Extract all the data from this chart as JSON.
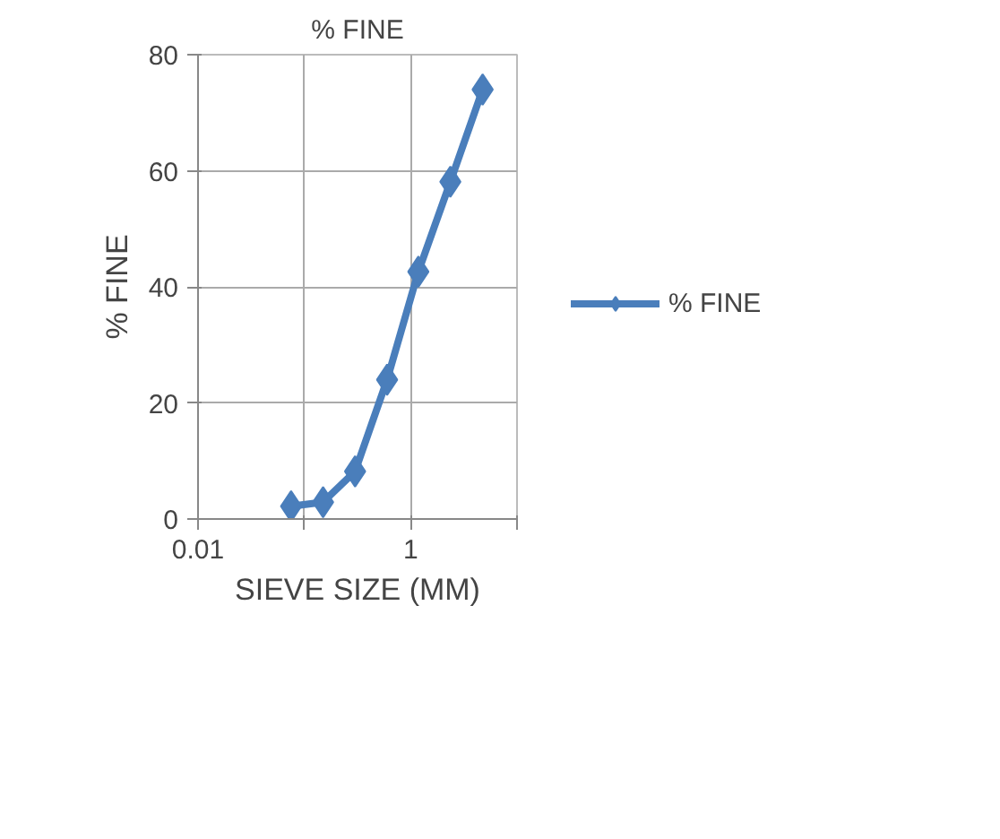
{
  "chart_data": {
    "type": "line",
    "title": "% FINE",
    "xlabel": "SIEVE SIZE (MM)",
    "ylabel": "% FINE",
    "x": [
      0.075,
      0.15,
      0.3,
      0.6,
      1.18,
      2.36,
      4.75
    ],
    "series": [
      {
        "name": "% FINE",
        "color": "#4a7ebb",
        "values": [
          2.2,
          2.9,
          8.2,
          24.0,
          42.6,
          58.1,
          74.0
        ]
      }
    ],
    "log": "x",
    "xlim": [
      0.01,
      10
    ],
    "xticks": [
      0.01,
      {
        "value": 0.1,
        "label": null
      },
      1,
      {
        "value": 10,
        "label": null
      }
    ],
    "ylim": [
      0,
      80
    ],
    "yticks": [
      0,
      20,
      40,
      60,
      80
    ],
    "grid": true,
    "legend": "right",
    "marker": "diamond",
    "line_style": "solid"
  }
}
